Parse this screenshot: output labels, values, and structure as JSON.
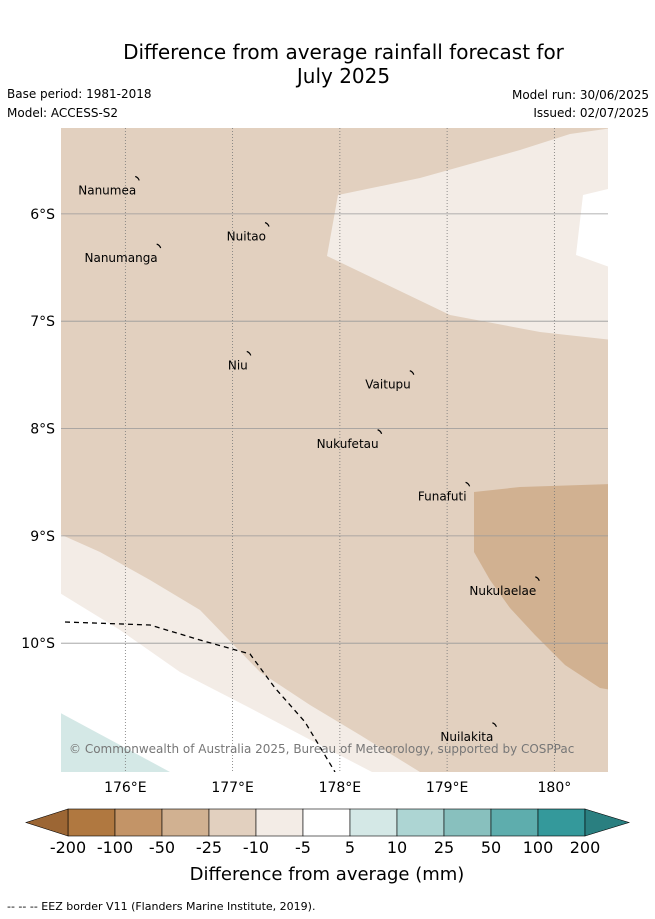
{
  "title": {
    "line1": "Difference from average rainfall forecast for",
    "line2": "July 2025"
  },
  "meta": {
    "base_period": "Base period: 1981-2018",
    "model": "Model: ACCESS-S2",
    "model_run": "Model run: 30/06/2025",
    "issued": "Issued: 02/07/2025"
  },
  "map": {
    "lon_range": [
      175.4,
      180.5
    ],
    "lat_range": [
      -11.2,
      -5.2
    ],
    "longitude_ticks": [
      {
        "value": 176,
        "label": "176°E"
      },
      {
        "value": 177,
        "label": "177°E"
      },
      {
        "value": 178,
        "label": "178°E"
      },
      {
        "value": 179,
        "label": "179°E"
      },
      {
        "value": 180,
        "label": "180°"
      }
    ],
    "latitude_ticks": [
      {
        "value": -6,
        "label": "6°S"
      },
      {
        "value": -7,
        "label": "7°S"
      },
      {
        "value": -8,
        "label": "8°S"
      },
      {
        "value": -9,
        "label": "9°S"
      },
      {
        "value": -10,
        "label": "10°S"
      }
    ],
    "islands": [
      {
        "name": "Nanumea",
        "lon": 176.12,
        "lat": -5.67
      },
      {
        "name": "Nuitao",
        "lon": 177.33,
        "lat": -6.1
      },
      {
        "name": "Nanumanga",
        "lon": 176.32,
        "lat": -6.3
      },
      {
        "name": "Niu",
        "lon": 177.16,
        "lat": -7.3
      },
      {
        "name": "Vaitupu",
        "lon": 178.68,
        "lat": -7.48
      },
      {
        "name": "Nukufetau",
        "lon": 178.38,
        "lat": -8.03
      },
      {
        "name": "Funafuti",
        "lon": 179.2,
        "lat": -8.52
      },
      {
        "name": "Nukulaelae",
        "lon": 179.85,
        "lat": -9.4
      },
      {
        "name": "Nuilakita",
        "lon": 179.45,
        "lat": -10.76
      }
    ],
    "copyright": "© Commonwealth of Australia 2025, Bureau of Meteorology, supported by COSPPac"
  },
  "colorbar": {
    "ticks": [
      "-200",
      "-100",
      "-50",
      "-25",
      "-10",
      "-5",
      "5",
      "10",
      "25",
      "50",
      "100",
      "200"
    ],
    "colors": [
      "#b07840",
      "#c39467",
      "#d1b191",
      "#e2d0bf",
      "#f3ece6",
      "#ffffff",
      "#d4e8e6",
      "#add5d3",
      "#88c0be",
      "#5eadad",
      "#34999b"
    ],
    "under_color": "#9c6634",
    "over_color": "#2a7f80",
    "label": "Difference from average (mm)"
  },
  "footer": {
    "eez_note": "--  --  -- EEZ border V11 (Flanders Marine Institute, 2019)."
  }
}
